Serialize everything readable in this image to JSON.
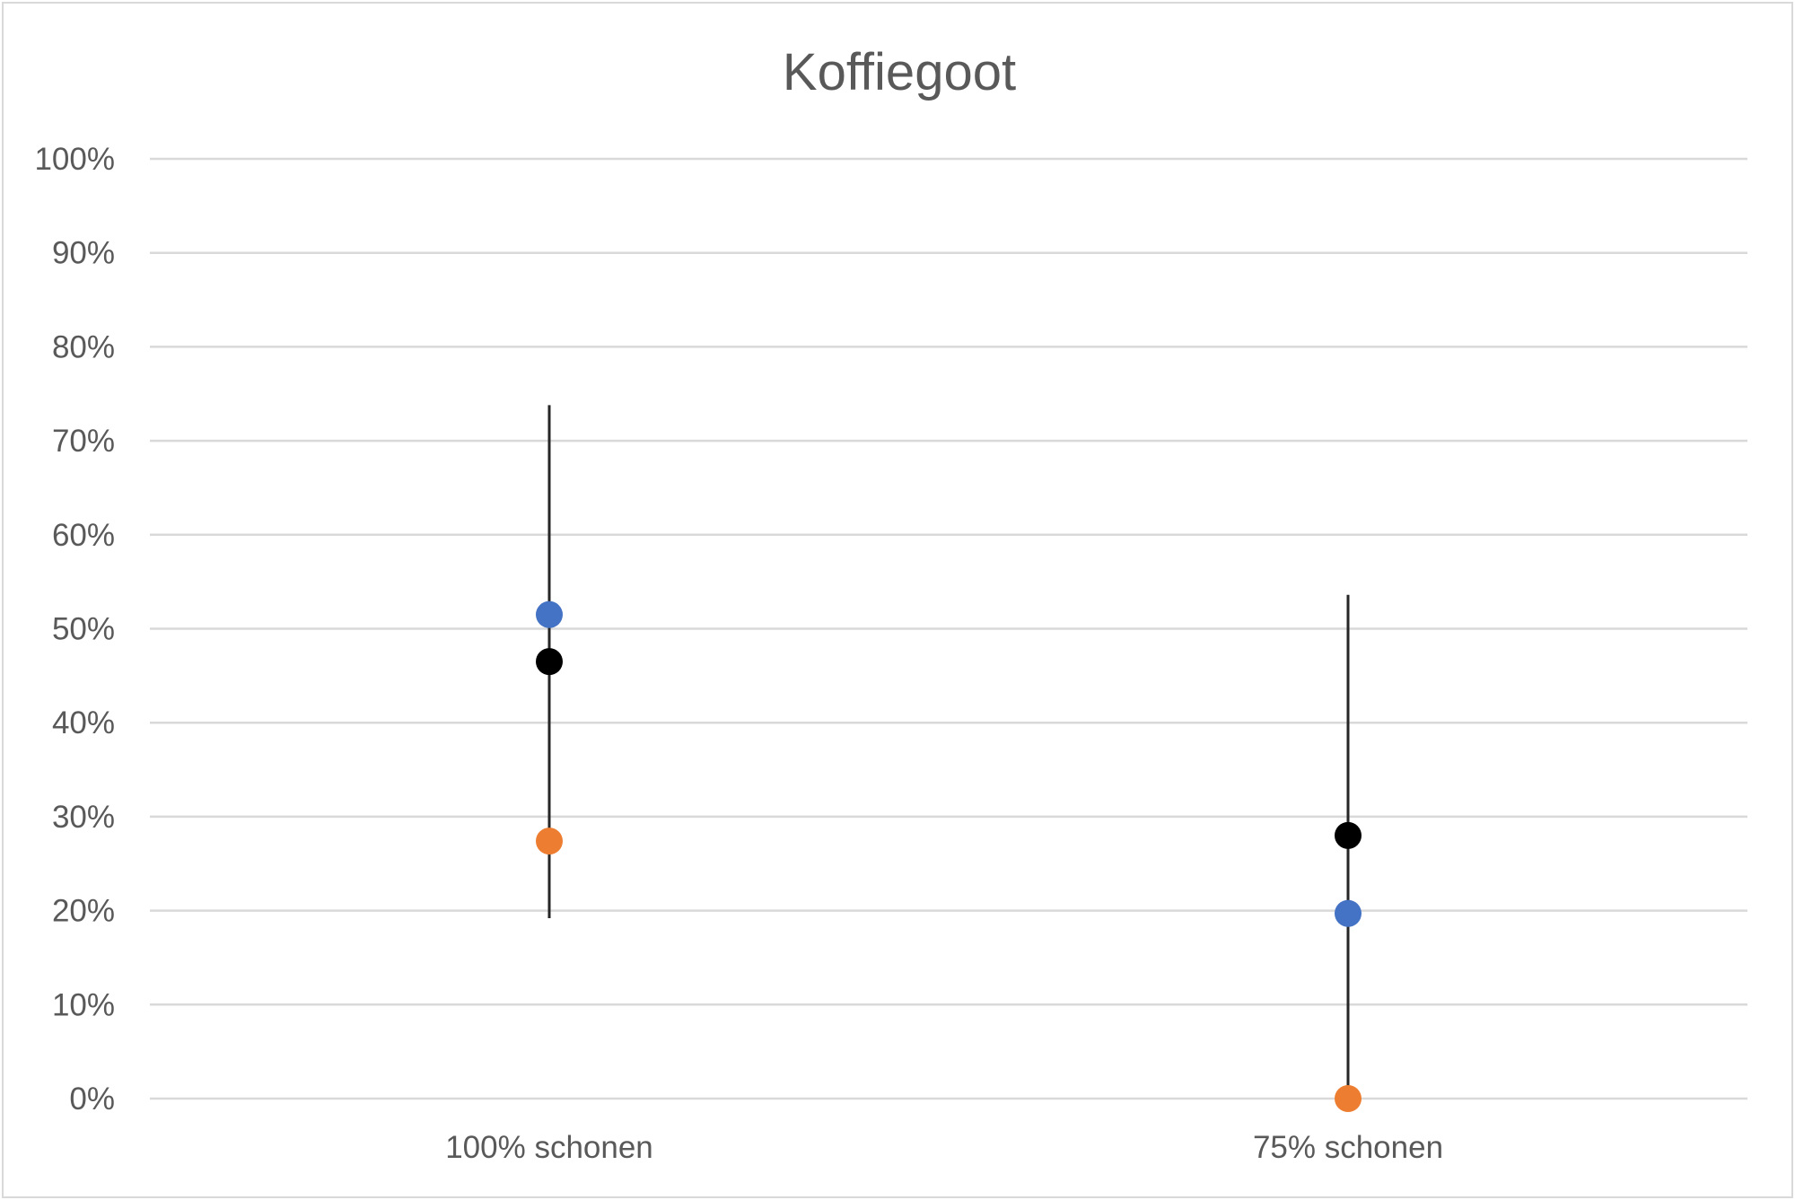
{
  "chart_data": {
    "type": "scatter",
    "title": "Koffiegoot",
    "xlabel": "",
    "ylabel": "",
    "categories": [
      "100% schonen",
      "75% schonen"
    ],
    "ylim": [
      0,
      1
    ],
    "y_ticks": [
      0,
      0.1,
      0.2,
      0.3,
      0.4,
      0.5,
      0.6,
      0.7,
      0.8,
      0.9,
      1.0
    ],
    "y_tick_labels": [
      "0%",
      "10%",
      "20%",
      "30%",
      "40%",
      "50%",
      "60%",
      "70%",
      "80%",
      "90%",
      "100%"
    ],
    "grid": true,
    "legend": "none",
    "series": [
      {
        "color": "#4472c4",
        "values": [
          0.515,
          0.197
        ]
      },
      {
        "color": "#ed7d31",
        "values": [
          0.274,
          0.0
        ]
      },
      {
        "color": "#000000",
        "values": [
          0.465,
          0.28
        ]
      }
    ],
    "error_bars": [
      {
        "category": "100% schonen",
        "low": 0.192,
        "high": 0.738
      },
      {
        "category": "75% schonen",
        "low": 0.0,
        "high": 0.536
      }
    ]
  }
}
